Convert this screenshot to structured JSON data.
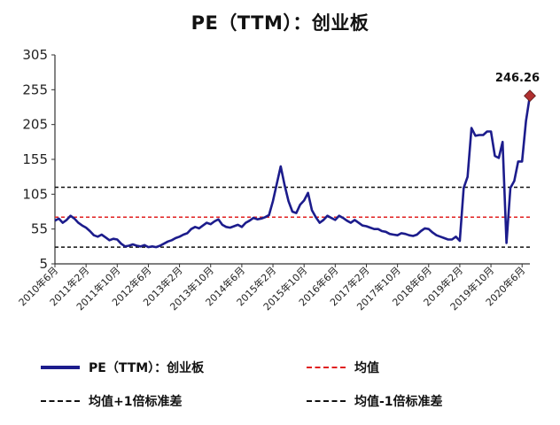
{
  "chart_data": {
    "type": "line",
    "title": "PE（TTM）：创业板",
    "xlabel": "",
    "ylabel": "",
    "ylim": [
      5,
      305
    ],
    "yticks": [
      "305",
      "255",
      "205",
      "155",
      "105",
      "55",
      "5"
    ],
    "xticks": [
      "2010年6月",
      "2011年2月",
      "2011年10月",
      "2012年6月",
      "2013年2月",
      "2013年10月",
      "2014年6月",
      "2015年2月",
      "2015年10月",
      "2016年6月",
      "2017年2月",
      "2017年10月",
      "2018年6月",
      "2019年2月",
      "2019年10月",
      "2020年6月"
    ],
    "grid": false,
    "legend_position": "bottom",
    "series": [
      {
        "name": "PE（TTM）：创业板",
        "color": "#1c1c8c",
        "x": [
          "2010-06",
          "2010-07",
          "2010-08",
          "2010-09",
          "2010-10",
          "2010-11",
          "2010-12",
          "2011-01",
          "2011-02",
          "2011-03",
          "2011-04",
          "2011-05",
          "2011-06",
          "2011-07",
          "2011-08",
          "2011-09",
          "2011-10",
          "2011-11",
          "2011-12",
          "2012-01",
          "2012-02",
          "2012-03",
          "2012-04",
          "2012-05",
          "2012-06",
          "2012-07",
          "2012-08",
          "2012-09",
          "2012-10",
          "2012-11",
          "2012-12",
          "2013-01",
          "2013-02",
          "2013-03",
          "2013-04",
          "2013-05",
          "2013-06",
          "2013-07",
          "2013-08",
          "2013-09",
          "2013-10",
          "2013-11",
          "2013-12",
          "2014-01",
          "2014-02",
          "2014-03",
          "2014-04",
          "2014-05",
          "2014-06",
          "2014-07",
          "2014-08",
          "2014-09",
          "2014-10",
          "2014-11",
          "2014-12",
          "2015-01",
          "2015-02",
          "2015-03",
          "2015-04",
          "2015-05",
          "2015-06",
          "2015-07",
          "2015-08",
          "2015-09",
          "2015-10",
          "2015-11",
          "2015-12",
          "2016-01",
          "2016-02",
          "2016-03",
          "2016-04",
          "2016-05",
          "2016-06",
          "2016-07",
          "2016-08",
          "2016-09",
          "2016-10",
          "2016-11",
          "2016-12",
          "2017-01",
          "2017-02",
          "2017-03",
          "2017-04",
          "2017-05",
          "2017-06",
          "2017-07",
          "2017-08",
          "2017-09",
          "2017-10",
          "2017-11",
          "2017-12",
          "2018-01",
          "2018-02",
          "2018-03",
          "2018-04",
          "2018-05",
          "2018-06",
          "2018-07",
          "2018-08",
          "2018-09",
          "2018-10",
          "2018-11",
          "2018-12",
          "2019-01",
          "2019-02",
          "2019-03",
          "2019-04",
          "2019-05",
          "2019-06",
          "2019-07",
          "2019-08",
          "2019-09",
          "2019-10",
          "2019-11",
          "2019-12",
          "2020-01",
          "2020-02",
          "2020-03",
          "2020-04",
          "2020-05",
          "2020-06",
          "2020-07",
          "2020-08"
        ],
        "values": [
          67,
          70,
          64,
          68,
          74,
          70,
          64,
          60,
          57,
          52,
          46,
          44,
          47,
          43,
          39,
          41,
          40,
          34,
          30,
          31,
          33,
          31,
          30,
          32,
          29,
          30,
          29,
          31,
          34,
          37,
          39,
          42,
          44,
          47,
          49,
          55,
          58,
          56,
          60,
          64,
          62,
          66,
          69,
          61,
          58,
          57,
          59,
          61,
          58,
          64,
          67,
          71,
          69,
          70,
          72,
          75,
          95,
          120,
          145,
          118,
          95,
          80,
          78,
          90,
          96,
          107,
          82,
          72,
          64,
          68,
          74,
          71,
          68,
          74,
          71,
          67,
          64,
          68,
          64,
          60,
          59,
          57,
          55,
          55,
          52,
          51,
          48,
          47,
          46,
          49,
          48,
          46,
          45,
          47,
          52,
          56,
          55,
          50,
          46,
          44,
          42,
          40,
          40,
          44,
          38,
          114,
          130,
          200,
          189,
          190,
          190,
          195,
          195,
          160,
          157,
          180,
          35,
          114,
          124,
          152,
          152,
          210,
          246.26
        ]
      },
      {
        "name": "均值",
        "color": "#e02020",
        "dash": "dashed",
        "value": 72
      },
      {
        "name": "均值+1倍标准差",
        "color": "#111111",
        "dash": "dashed",
        "value": 115
      },
      {
        "name": "均值-1倍标准差",
        "color": "#111111",
        "dash": "dashed",
        "value": 29
      }
    ],
    "annotations": [
      {
        "text": "246.26",
        "x": "2020-08",
        "y": 246.26,
        "marker_color": "#b03030"
      }
    ]
  }
}
